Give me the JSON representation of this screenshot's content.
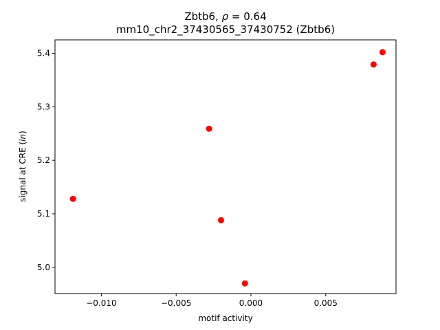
{
  "chart_data": {
    "type": "scatter",
    "title_line1_prefix": "Zbtb6, ",
    "title_rho_symbol": "ρ",
    "title_rho_value": " = 0.64",
    "title_line2": "mm10_chr2_37430565_37430752 (Zbtb6)",
    "xlabel": "motif activity",
    "ylabel_prefix": "signal at CRE (",
    "ylabel_italic": "ln",
    "ylabel_suffix": ")",
    "xlim": [
      -0.0131,
      0.0097
    ],
    "ylim": [
      4.951,
      5.425
    ],
    "x_ticks": [
      -0.01,
      -0.005,
      0.0,
      0.005
    ],
    "x_tick_labels": [
      "−0.010",
      "−0.005",
      "0.000",
      "0.005"
    ],
    "y_ticks": [
      5.0,
      5.1,
      5.2,
      5.3,
      5.4
    ],
    "y_tick_labels": [
      "5.0",
      "5.1",
      "5.2",
      "5.3",
      "5.4"
    ],
    "marker_color": "#ff0000",
    "points": [
      {
        "x": -0.0119,
        "y": 5.128
      },
      {
        "x": -0.0028,
        "y": 5.259
      },
      {
        "x": -0.002,
        "y": 5.088
      },
      {
        "x": -0.0004,
        "y": 4.97
      },
      {
        "x": 0.0082,
        "y": 5.379
      },
      {
        "x": 0.0088,
        "y": 5.402
      }
    ]
  }
}
